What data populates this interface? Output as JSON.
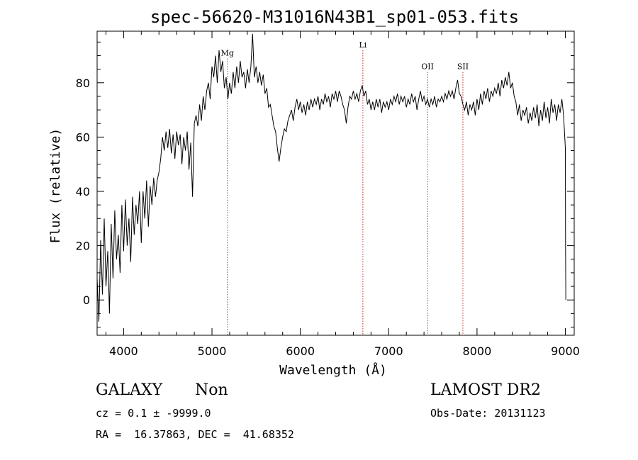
{
  "chart_data": {
    "type": "line",
    "title": "spec-56620-M31016N43B1_sp01-053.fits",
    "xlabel": "Wavelength (Å)",
    "ylabel": "Flux (relative)",
    "xlim": [
      3700,
      9100
    ],
    "ylim": [
      -13,
      99
    ],
    "x_ticks": [
      4000,
      5000,
      6000,
      7000,
      8000,
      9000
    ],
    "y_ticks": [
      0,
      20,
      40,
      60,
      80
    ],
    "grid": false,
    "series": [
      {
        "color": "#000000",
        "points": [
          [
            3700,
            8
          ],
          [
            3720,
            -8
          ],
          [
            3740,
            22
          ],
          [
            3760,
            2
          ],
          [
            3780,
            30
          ],
          [
            3800,
            5
          ],
          [
            3820,
            18
          ],
          [
            3840,
            -5
          ],
          [
            3860,
            28
          ],
          [
            3880,
            8
          ],
          [
            3900,
            33
          ],
          [
            3920,
            15
          ],
          [
            3940,
            24
          ],
          [
            3960,
            10
          ],
          [
            3980,
            35
          ],
          [
            4000,
            18
          ],
          [
            4020,
            37
          ],
          [
            4040,
            20
          ],
          [
            4060,
            30
          ],
          [
            4080,
            14
          ],
          [
            4100,
            38
          ],
          [
            4120,
            24
          ],
          [
            4140,
            35
          ],
          [
            4160,
            28
          ],
          [
            4180,
            40
          ],
          [
            4200,
            21
          ],
          [
            4220,
            40
          ],
          [
            4240,
            30
          ],
          [
            4260,
            44
          ],
          [
            4280,
            27
          ],
          [
            4300,
            42
          ],
          [
            4320,
            35
          ],
          [
            4340,
            45
          ],
          [
            4360,
            38
          ],
          [
            4380,
            44
          ],
          [
            4400,
            47
          ],
          [
            4420,
            52
          ],
          [
            4440,
            60
          ],
          [
            4460,
            55
          ],
          [
            4480,
            62
          ],
          [
            4500,
            56
          ],
          [
            4520,
            63
          ],
          [
            4540,
            54
          ],
          [
            4560,
            61
          ],
          [
            4580,
            52
          ],
          [
            4600,
            62
          ],
          [
            4620,
            57
          ],
          [
            4640,
            61
          ],
          [
            4660,
            50
          ],
          [
            4680,
            60
          ],
          [
            4700,
            55
          ],
          [
            4720,
            62
          ],
          [
            4740,
            48
          ],
          [
            4760,
            58
          ],
          [
            4780,
            38
          ],
          [
            4800,
            65
          ],
          [
            4820,
            68
          ],
          [
            4840,
            64
          ],
          [
            4860,
            72
          ],
          [
            4880,
            66
          ],
          [
            4900,
            75
          ],
          [
            4920,
            70
          ],
          [
            4940,
            77
          ],
          [
            4960,
            80
          ],
          [
            4980,
            74
          ],
          [
            5000,
            86
          ],
          [
            5020,
            82
          ],
          [
            5040,
            90
          ],
          [
            5060,
            80
          ],
          [
            5080,
            92
          ],
          [
            5100,
            84
          ],
          [
            5120,
            88
          ],
          [
            5140,
            78
          ],
          [
            5160,
            82
          ],
          [
            5180,
            74
          ],
          [
            5200,
            80
          ],
          [
            5220,
            76
          ],
          [
            5240,
            84
          ],
          [
            5260,
            78
          ],
          [
            5280,
            86
          ],
          [
            5300,
            80
          ],
          [
            5320,
            88
          ],
          [
            5340,
            82
          ],
          [
            5360,
            84
          ],
          [
            5380,
            78
          ],
          [
            5400,
            85
          ],
          [
            5420,
            80
          ],
          [
            5440,
            86
          ],
          [
            5460,
            98
          ],
          [
            5480,
            82
          ],
          [
            5500,
            86
          ],
          [
            5520,
            80
          ],
          [
            5540,
            84
          ],
          [
            5560,
            79
          ],
          [
            5580,
            83
          ],
          [
            5600,
            76
          ],
          [
            5620,
            78
          ],
          [
            5640,
            71
          ],
          [
            5660,
            72
          ],
          [
            5680,
            68
          ],
          [
            5700,
            64
          ],
          [
            5720,
            62
          ],
          [
            5740,
            56
          ],
          [
            5760,
            51
          ],
          [
            5780,
            56
          ],
          [
            5800,
            60
          ],
          [
            5820,
            63
          ],
          [
            5840,
            62
          ],
          [
            5860,
            66
          ],
          [
            5880,
            68
          ],
          [
            5900,
            70
          ],
          [
            5920,
            66
          ],
          [
            5940,
            71
          ],
          [
            5960,
            74
          ],
          [
            5980,
            70
          ],
          [
            6000,
            73
          ],
          [
            6020,
            69
          ],
          [
            6040,
            72
          ],
          [
            6060,
            68
          ],
          [
            6080,
            73
          ],
          [
            6100,
            70
          ],
          [
            6120,
            74
          ],
          [
            6140,
            71
          ],
          [
            6160,
            74
          ],
          [
            6180,
            72
          ],
          [
            6200,
            75
          ],
          [
            6220,
            70
          ],
          [
            6240,
            74
          ],
          [
            6260,
            72
          ],
          [
            6280,
            76
          ],
          [
            6300,
            73
          ],
          [
            6320,
            75
          ],
          [
            6340,
            71
          ],
          [
            6360,
            76
          ],
          [
            6380,
            74
          ],
          [
            6400,
            77
          ],
          [
            6420,
            73
          ],
          [
            6440,
            77
          ],
          [
            6460,
            75
          ],
          [
            6480,
            72
          ],
          [
            6500,
            70
          ],
          [
            6520,
            65
          ],
          [
            6540,
            71
          ],
          [
            6560,
            75
          ],
          [
            6580,
            74
          ],
          [
            6600,
            77
          ],
          [
            6620,
            74
          ],
          [
            6640,
            76
          ],
          [
            6660,
            73
          ],
          [
            6680,
            77
          ],
          [
            6700,
            79
          ],
          [
            6720,
            75
          ],
          [
            6740,
            77
          ],
          [
            6760,
            72
          ],
          [
            6780,
            74
          ],
          [
            6800,
            70
          ],
          [
            6820,
            73
          ],
          [
            6840,
            70
          ],
          [
            6860,
            74
          ],
          [
            6880,
            71
          ],
          [
            6900,
            74
          ],
          [
            6920,
            69
          ],
          [
            6940,
            73
          ],
          [
            6960,
            71
          ],
          [
            6980,
            73
          ],
          [
            7000,
            70
          ],
          [
            7020,
            74
          ],
          [
            7040,
            72
          ],
          [
            7060,
            75
          ],
          [
            7080,
            73
          ],
          [
            7100,
            76
          ],
          [
            7120,
            72
          ],
          [
            7140,
            75
          ],
          [
            7160,
            73
          ],
          [
            7180,
            75
          ],
          [
            7200,
            71
          ],
          [
            7220,
            74
          ],
          [
            7240,
            72
          ],
          [
            7260,
            76
          ],
          [
            7280,
            73
          ],
          [
            7300,
            75
          ],
          [
            7320,
            70
          ],
          [
            7340,
            74
          ],
          [
            7360,
            77
          ],
          [
            7380,
            73
          ],
          [
            7400,
            75
          ],
          [
            7420,
            72
          ],
          [
            7440,
            74
          ],
          [
            7460,
            71
          ],
          [
            7480,
            74
          ],
          [
            7500,
            72
          ],
          [
            7520,
            75
          ],
          [
            7540,
            71
          ],
          [
            7560,
            74
          ],
          [
            7580,
            73
          ],
          [
            7600,
            75
          ],
          [
            7620,
            73
          ],
          [
            7640,
            76
          ],
          [
            7660,
            74
          ],
          [
            7680,
            77
          ],
          [
            7700,
            75
          ],
          [
            7720,
            77
          ],
          [
            7740,
            74
          ],
          [
            7760,
            78
          ],
          [
            7780,
            81
          ],
          [
            7800,
            76
          ],
          [
            7820,
            75
          ],
          [
            7840,
            72
          ],
          [
            7860,
            70
          ],
          [
            7880,
            73
          ],
          [
            7900,
            68
          ],
          [
            7920,
            72
          ],
          [
            7940,
            70
          ],
          [
            7960,
            73
          ],
          [
            7980,
            68
          ],
          [
            8000,
            74
          ],
          [
            8020,
            70
          ],
          [
            8040,
            76
          ],
          [
            8060,
            72
          ],
          [
            8080,
            77
          ],
          [
            8100,
            74
          ],
          [
            8120,
            78
          ],
          [
            8140,
            73
          ],
          [
            8160,
            77
          ],
          [
            8180,
            75
          ],
          [
            8200,
            78
          ],
          [
            8220,
            76
          ],
          [
            8240,
            80
          ],
          [
            8260,
            75
          ],
          [
            8280,
            81
          ],
          [
            8300,
            78
          ],
          [
            8320,
            82
          ],
          [
            8340,
            79
          ],
          [
            8360,
            84
          ],
          [
            8380,
            78
          ],
          [
            8400,
            80
          ],
          [
            8420,
            75
          ],
          [
            8440,
            73
          ],
          [
            8460,
            68
          ],
          [
            8480,
            72
          ],
          [
            8500,
            66
          ],
          [
            8520,
            70
          ],
          [
            8540,
            68
          ],
          [
            8560,
            71
          ],
          [
            8580,
            65
          ],
          [
            8600,
            69
          ],
          [
            8620,
            66
          ],
          [
            8640,
            71
          ],
          [
            8660,
            67
          ],
          [
            8680,
            72
          ],
          [
            8700,
            64
          ],
          [
            8720,
            70
          ],
          [
            8740,
            66
          ],
          [
            8760,
            73
          ],
          [
            8780,
            67
          ],
          [
            8800,
            71
          ],
          [
            8820,
            65
          ],
          [
            8840,
            74
          ],
          [
            8860,
            69
          ],
          [
            8880,
            72
          ],
          [
            8900,
            66
          ],
          [
            8920,
            72
          ],
          [
            8940,
            69
          ],
          [
            8960,
            74
          ],
          [
            8980,
            68
          ],
          [
            9000,
            56
          ],
          [
            9002,
            20
          ],
          [
            9005,
            0
          ]
        ]
      }
    ],
    "annotations": [
      {
        "label": "Mg",
        "x": 5175,
        "label_y": 90
      },
      {
        "label": "Li",
        "x": 6708,
        "label_y": 93
      },
      {
        "label": "OII",
        "x": 7440,
        "label_y": 85
      },
      {
        "label": "SII",
        "x": 7840,
        "label_y": 85
      }
    ],
    "annotation_color": "#b03030"
  },
  "info": {
    "object_class": "GALAXY",
    "subclass": "Non",
    "survey": "LAMOST DR2",
    "redshift": "cz = 0.1 ± -9999.0",
    "obs_date": "Obs-Date: 20131123",
    "coords": "RA =  16.37863, DEC =  41.68352"
  }
}
